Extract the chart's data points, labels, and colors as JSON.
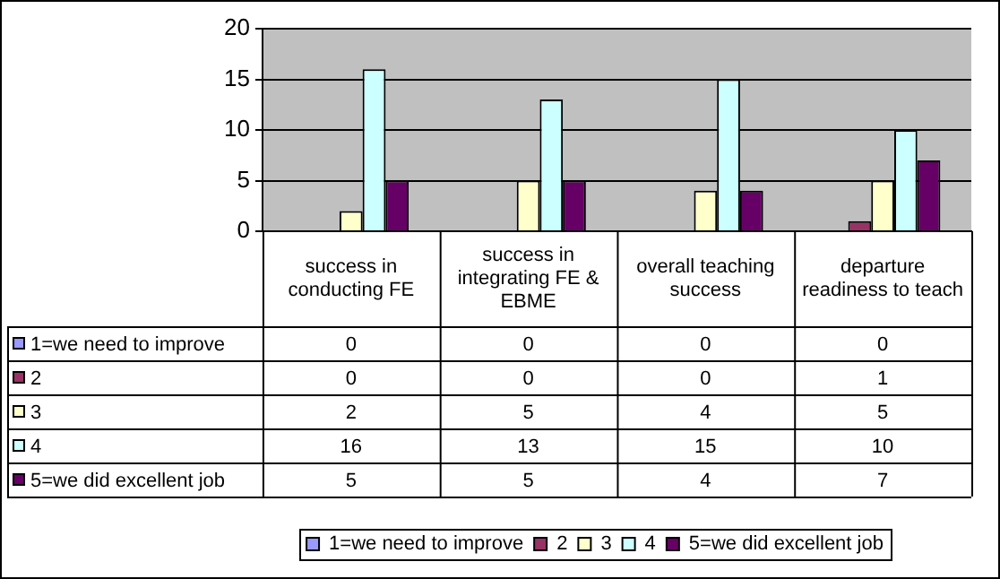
{
  "chart_data": {
    "type": "bar",
    "categories": [
      "success in conducting FE",
      "success in integrating FE & EBME",
      "overall teaching success",
      "departure readiness to teach"
    ],
    "series": [
      {
        "name": "1=we need to improve",
        "color": "#9999ff",
        "values": [
          0,
          0,
          0,
          0
        ]
      },
      {
        "name": "2",
        "color": "#993366",
        "values": [
          0,
          0,
          0,
          1
        ]
      },
      {
        "name": "3",
        "color": "#ffffcc",
        "values": [
          2,
          5,
          4,
          5
        ]
      },
      {
        "name": "4",
        "color": "#ccffff",
        "values": [
          16,
          13,
          15,
          10
        ]
      },
      {
        "name": "5=we did excellent job",
        "color": "#660066",
        "values": [
          5,
          5,
          4,
          7
        ]
      }
    ],
    "ylim": [
      0,
      20
    ],
    "yticks": [
      0,
      5,
      10,
      15,
      20
    ],
    "grid": "y",
    "legend": "bottom",
    "data_labels": true
  }
}
